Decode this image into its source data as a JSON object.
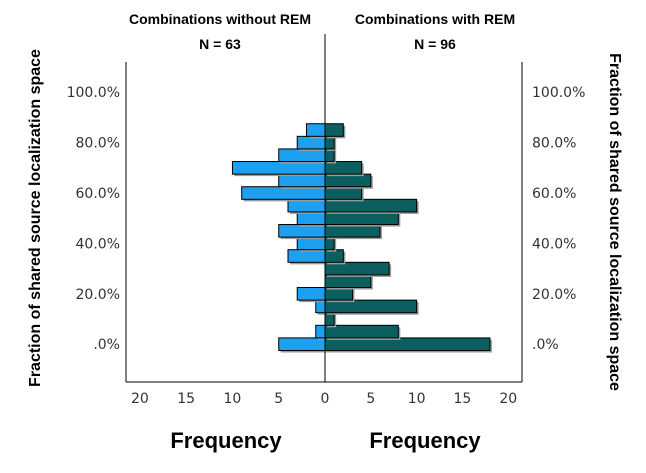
{
  "chart_data": {
    "type": "bar",
    "orientation": "horizontal-back-to-back",
    "left_panel": {
      "title": "Combinations without REM",
      "n_label": "N = 63",
      "color": "#1ea0f0"
    },
    "right_panel": {
      "title": "Combinations with REM",
      "n_label": "N = 96",
      "color": "#0c5f5f"
    },
    "y_axis": {
      "label": "Fraction of shared source localization space",
      "tick_labels": [
        ".0%",
        "20.0%",
        "40.0%",
        "60.0%",
        "80.0%",
        "100.0%"
      ],
      "tick_values": [
        0,
        20,
        40,
        60,
        80,
        100
      ],
      "range": [
        -15,
        112
      ]
    },
    "x_axis": {
      "label": "Frequency",
      "range": [
        0,
        21.5
      ],
      "tick_labels": [
        "20",
        "15",
        "10",
        "5",
        "0",
        "5",
        "10",
        "15",
        "20"
      ]
    },
    "bin_centers": [
      0,
      5,
      10,
      15,
      20,
      25,
      30,
      35,
      40,
      45,
      50,
      55,
      60,
      65,
      70,
      75,
      80,
      85,
      90,
      95
    ],
    "series": [
      {
        "name": "Combinations without REM",
        "values": [
          5,
          1,
          0,
          1,
          3,
          0,
          0,
          4,
          3,
          5,
          3,
          4,
          9,
          5,
          10,
          5,
          3,
          2,
          0,
          0
        ]
      },
      {
        "name": "Combinations with REM",
        "values": [
          18,
          8,
          1,
          10,
          3,
          5,
          7,
          2,
          1,
          6,
          8,
          10,
          4,
          5,
          4,
          1,
          1,
          2,
          0,
          0
        ]
      }
    ],
    "grid": false
  }
}
